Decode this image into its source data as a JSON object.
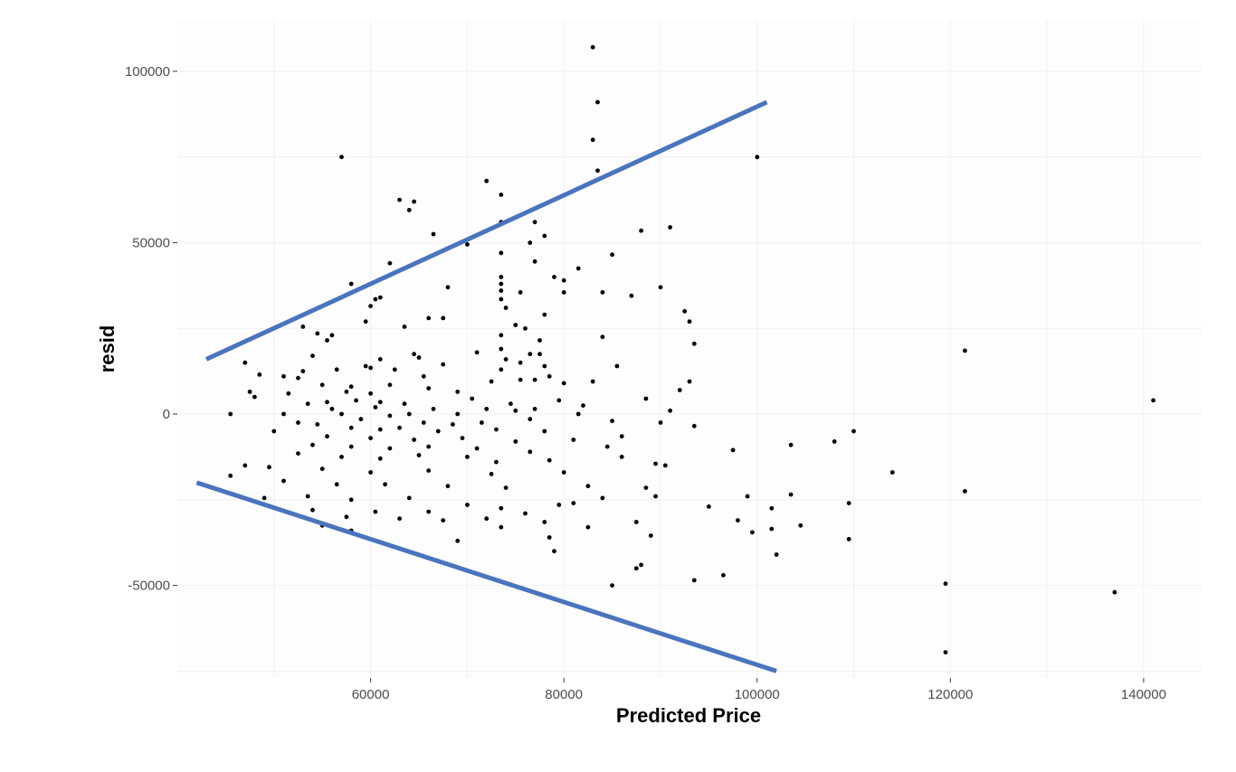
{
  "chart_data": {
    "type": "scatter",
    "title": "",
    "xlabel": "Predicted Price",
    "ylabel": "resid",
    "xlim": [
      40000,
      146000
    ],
    "ylim": [
      -77000,
      115000
    ],
    "x_ticks": [
      60000,
      80000,
      100000,
      120000,
      140000
    ],
    "x_tick_labels": [
      "60000",
      "80000",
      "100000",
      "120000",
      "140000"
    ],
    "y_ticks": [
      -50000,
      0,
      50000,
      100000
    ],
    "y_tick_labels": [
      "-50000",
      "0",
      "50000",
      "100000"
    ],
    "grid": true,
    "legend": "none",
    "point_color": "#000000",
    "annotation_color": "#4a74bd",
    "annotation_lines": [
      {
        "name": "upper-bound",
        "x": [
          43000,
          101000
        ],
        "y": [
          16000,
          91000
        ]
      },
      {
        "name": "lower-bound",
        "x": [
          42000,
          102000
        ],
        "y": [
          -20000,
          -75000
        ]
      }
    ],
    "points": [
      [
        83000,
        107000
      ],
      [
        83500,
        91000
      ],
      [
        83000,
        80000
      ],
      [
        57000,
        75000
      ],
      [
        100000,
        75000
      ],
      [
        83500,
        71000
      ],
      [
        72000,
        68000
      ],
      [
        73500,
        64000
      ],
      [
        63000,
        62500
      ],
      [
        64500,
        62000
      ],
      [
        64000,
        59500
      ],
      [
        77000,
        56000
      ],
      [
        73500,
        56000
      ],
      [
        91000,
        54500
      ],
      [
        88000,
        53500
      ],
      [
        66500,
        52500
      ],
      [
        78000,
        52000
      ],
      [
        76500,
        50000
      ],
      [
        70000,
        49500
      ],
      [
        73500,
        47000
      ],
      [
        85000,
        46500
      ],
      [
        77000,
        44500
      ],
      [
        62000,
        44000
      ],
      [
        81500,
        42500
      ],
      [
        79000,
        40000
      ],
      [
        80000,
        39000
      ],
      [
        73500,
        40000
      ],
      [
        73500,
        38000
      ],
      [
        58000,
        38000
      ],
      [
        90000,
        37000
      ],
      [
        68000,
        37000
      ],
      [
        73500,
        36000
      ],
      [
        75500,
        35500
      ],
      [
        80000,
        35500
      ],
      [
        84000,
        35500
      ],
      [
        61000,
        34000
      ],
      [
        60500,
        33500
      ],
      [
        73500,
        33500
      ],
      [
        87000,
        34500
      ],
      [
        60000,
        31500
      ],
      [
        74000,
        31000
      ],
      [
        92500,
        30000
      ],
      [
        78000,
        29000
      ],
      [
        66000,
        28000
      ],
      [
        67500,
        28000
      ],
      [
        59500,
        27000
      ],
      [
        93000,
        27000
      ],
      [
        75000,
        26000
      ],
      [
        53000,
        25500
      ],
      [
        63500,
        25500
      ],
      [
        76000,
        25000
      ],
      [
        54500,
        23500
      ],
      [
        73500,
        23000
      ],
      [
        56000,
        23000
      ],
      [
        55500,
        21500
      ],
      [
        77500,
        21500
      ],
      [
        84000,
        22500
      ],
      [
        93500,
        20500
      ],
      [
        121500,
        18500
      ],
      [
        73500,
        19000
      ],
      [
        76500,
        17500
      ],
      [
        77500,
        17500
      ],
      [
        64500,
        17500
      ],
      [
        65000,
        16500
      ],
      [
        74000,
        16000
      ],
      [
        61000,
        16000
      ],
      [
        54000,
        17000
      ],
      [
        71000,
        18000
      ],
      [
        59500,
        14000
      ],
      [
        78000,
        14000
      ],
      [
        67500,
        14500
      ],
      [
        75500,
        15000
      ],
      [
        53000,
        12500
      ],
      [
        60000,
        13500
      ],
      [
        62500,
        13000
      ],
      [
        73500,
        13000
      ],
      [
        56500,
        13000
      ],
      [
        52500,
        10500
      ],
      [
        65500,
        11000
      ],
      [
        77000,
        10000
      ],
      [
        78500,
        11000
      ],
      [
        85500,
        14000
      ],
      [
        80000,
        9000
      ],
      [
        72500,
        9500
      ],
      [
        75500,
        10000
      ],
      [
        58000,
        8000
      ],
      [
        62000,
        8500
      ],
      [
        55000,
        8500
      ],
      [
        48500,
        11500
      ],
      [
        47000,
        15000
      ],
      [
        51000,
        11000
      ],
      [
        93000,
        9500
      ],
      [
        92000,
        7000
      ],
      [
        66000,
        7500
      ],
      [
        69000,
        6500
      ],
      [
        83000,
        9500
      ],
      [
        57500,
        6500
      ],
      [
        60000,
        6000
      ],
      [
        51500,
        6000
      ],
      [
        47500,
        6500
      ],
      [
        48000,
        5000
      ],
      [
        70500,
        4500
      ],
      [
        61000,
        3500
      ],
      [
        55500,
        3500
      ],
      [
        58500,
        4000
      ],
      [
        63500,
        3000
      ],
      [
        79500,
        4000
      ],
      [
        82000,
        2500
      ],
      [
        88500,
        4500
      ],
      [
        74500,
        3000
      ],
      [
        53500,
        3000
      ],
      [
        56000,
        1500
      ],
      [
        60500,
        2000
      ],
      [
        66500,
        1500
      ],
      [
        72000,
        1500
      ],
      [
        77000,
        1500
      ],
      [
        51000,
        0
      ],
      [
        45500,
        0
      ],
      [
        57000,
        0
      ],
      [
        62000,
        -500
      ],
      [
        64000,
        0
      ],
      [
        69000,
        0
      ],
      [
        75000,
        1000
      ],
      [
        81500,
        0
      ],
      [
        91000,
        1000
      ],
      [
        141000,
        4000
      ],
      [
        76500,
        -1500
      ],
      [
        59000,
        -1500
      ],
      [
        52500,
        -2500
      ],
      [
        54500,
        -3000
      ],
      [
        65500,
        -2500
      ],
      [
        68500,
        -3000
      ],
      [
        71500,
        -2500
      ],
      [
        85000,
        -2000
      ],
      [
        90000,
        -2500
      ],
      [
        93500,
        -3500
      ],
      [
        58000,
        -4000
      ],
      [
        61000,
        -4500
      ],
      [
        63000,
        -4000
      ],
      [
        67000,
        -5000
      ],
      [
        73000,
        -4500
      ],
      [
        78000,
        -5000
      ],
      [
        86000,
        -6500
      ],
      [
        110000,
        -5000
      ],
      [
        50000,
        -5000
      ],
      [
        55500,
        -6500
      ],
      [
        60000,
        -7000
      ],
      [
        64500,
        -7500
      ],
      [
        69500,
        -7000
      ],
      [
        75000,
        -8000
      ],
      [
        81000,
        -7500
      ],
      [
        108000,
        -8000
      ],
      [
        54000,
        -9000
      ],
      [
        58000,
        -9500
      ],
      [
        62000,
        -10000
      ],
      [
        66000,
        -9500
      ],
      [
        71000,
        -10000
      ],
      [
        76500,
        -11000
      ],
      [
        84500,
        -9500
      ],
      [
        103500,
        -9000
      ],
      [
        97500,
        -10500
      ],
      [
        52500,
        -11500
      ],
      [
        57000,
        -12500
      ],
      [
        61000,
        -13000
      ],
      [
        65000,
        -12000
      ],
      [
        70000,
        -12500
      ],
      [
        73000,
        -14000
      ],
      [
        78500,
        -13500
      ],
      [
        86000,
        -12500
      ],
      [
        89500,
        -14500
      ],
      [
        90500,
        -15000
      ],
      [
        47000,
        -15000
      ],
      [
        49500,
        -15500
      ],
      [
        55000,
        -16000
      ],
      [
        60000,
        -17000
      ],
      [
        66000,
        -16500
      ],
      [
        72500,
        -17500
      ],
      [
        80000,
        -17000
      ],
      [
        114000,
        -17000
      ],
      [
        45500,
        -18000
      ],
      [
        51000,
        -19500
      ],
      [
        56500,
        -20500
      ],
      [
        61500,
        -20500
      ],
      [
        68000,
        -21000
      ],
      [
        74000,
        -21500
      ],
      [
        82500,
        -21000
      ],
      [
        88500,
        -21500
      ],
      [
        121500,
        -22500
      ],
      [
        49000,
        -24500
      ],
      [
        53500,
        -24000
      ],
      [
        58000,
        -25000
      ],
      [
        64000,
        -24500
      ],
      [
        70000,
        -26500
      ],
      [
        73500,
        -27500
      ],
      [
        79500,
        -26500
      ],
      [
        84000,
        -24500
      ],
      [
        89500,
        -24000
      ],
      [
        99000,
        -24000
      ],
      [
        103500,
        -23500
      ],
      [
        54000,
        -28000
      ],
      [
        60500,
        -28500
      ],
      [
        66000,
        -28500
      ],
      [
        76000,
        -29000
      ],
      [
        81000,
        -26000
      ],
      [
        95000,
        -27000
      ],
      [
        101500,
        -27500
      ],
      [
        109500,
        -26000
      ],
      [
        57500,
        -30000
      ],
      [
        63000,
        -30500
      ],
      [
        72000,
        -30500
      ],
      [
        78000,
        -31500
      ],
      [
        87500,
        -31500
      ],
      [
        98000,
        -31000
      ],
      [
        55000,
        -32500
      ],
      [
        67500,
        -31000
      ],
      [
        73500,
        -33000
      ],
      [
        82500,
        -33000
      ],
      [
        101500,
        -33500
      ],
      [
        104500,
        -32500
      ],
      [
        58000,
        -34000
      ],
      [
        78500,
        -36000
      ],
      [
        89000,
        -35500
      ],
      [
        99500,
        -34500
      ],
      [
        109500,
        -36500
      ],
      [
        69000,
        -37000
      ],
      [
        79000,
        -40000
      ],
      [
        102000,
        -41000
      ],
      [
        88000,
        -44000
      ],
      [
        87500,
        -45000
      ],
      [
        96500,
        -47000
      ],
      [
        93500,
        -48500
      ],
      [
        85000,
        -50000
      ],
      [
        119500,
        -49500
      ],
      [
        137000,
        -52000
      ],
      [
        119500,
        -69500
      ]
    ]
  }
}
